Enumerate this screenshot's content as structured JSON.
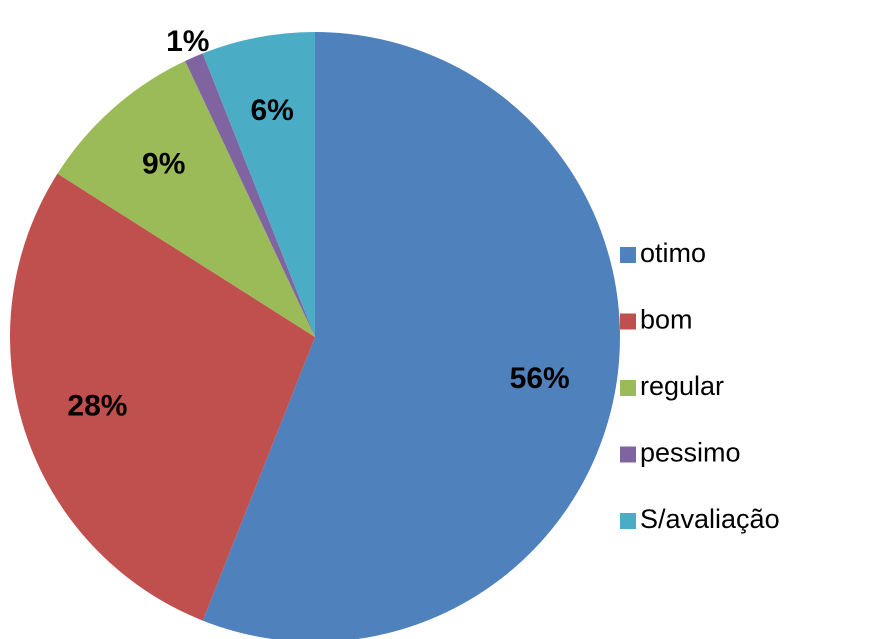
{
  "chart_data": {
    "type": "pie",
    "categories": [
      "otimo",
      "bom",
      "regular",
      "pessimo",
      "S/avaliação"
    ],
    "values": [
      56,
      28,
      9,
      1,
      6
    ],
    "value_labels": [
      "56%",
      "28%",
      "9%",
      "1%",
      "6%"
    ],
    "colors": [
      "#4f81bd",
      "#c0504d",
      "#9bbb59",
      "#8064a2",
      "#4bacc6"
    ],
    "legend": "right"
  }
}
